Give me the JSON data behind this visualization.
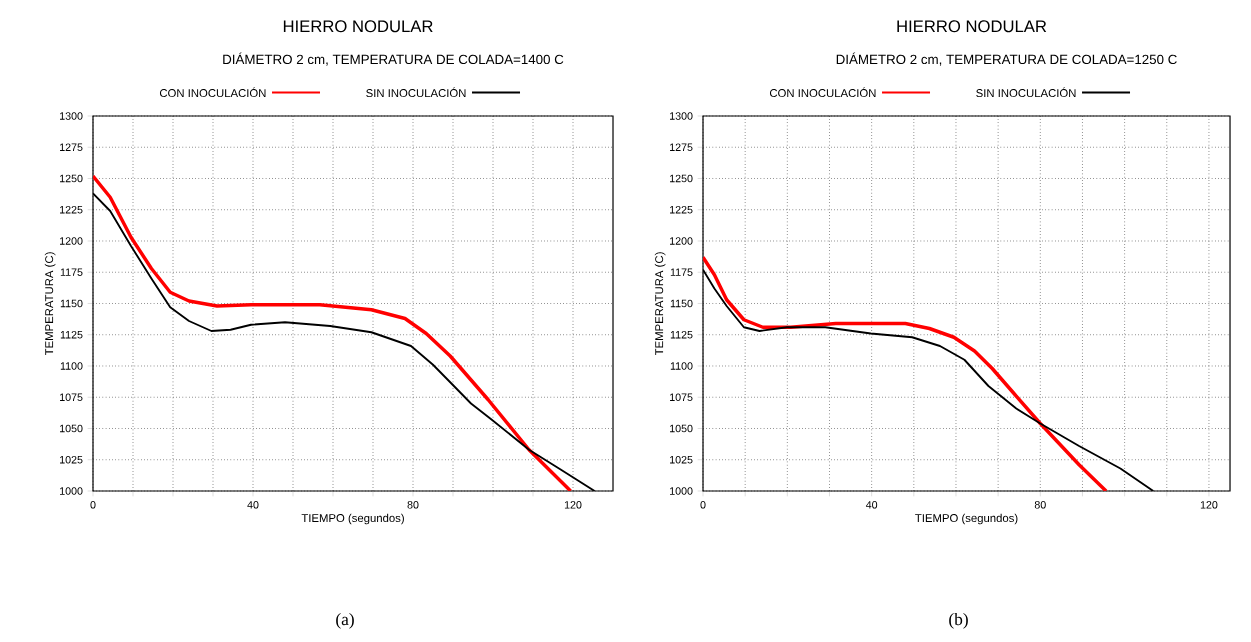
{
  "chart_data": [
    {
      "type": "line",
      "title": "HIERRO NODULAR",
      "subtitle": "DIÁMETRO 2 cm, TEMPERATURA DE COLADA=1400 C",
      "xlabel": "TIEMPO (segundos)",
      "ylabel": "TEMPERATURA (C)",
      "annotations": [
        "(a)"
      ],
      "legend": "top",
      "grid": true,
      "xlim": [
        0,
        130
      ],
      "ylim": [
        1000,
        1300
      ],
      "xticks": [
        0,
        {
          "value": 10,
          "label": null
        },
        {
          "value": 20,
          "label": null
        },
        {
          "value": 30,
          "label": null
        },
        40,
        {
          "value": 50,
          "label": null
        },
        {
          "value": 60,
          "label": null
        },
        {
          "value": 70,
          "label": null
        },
        80,
        {
          "value": 90,
          "label": null
        },
        {
          "value": 100,
          "label": null
        },
        {
          "value": 110,
          "label": null
        },
        120
      ],
      "yticks": [
        1000,
        1025,
        1050,
        1075,
        1100,
        1125,
        1150,
        1175,
        1200,
        1225,
        1250,
        1275,
        1300
      ],
      "series": [
        {
          "name": "CON INOCULACIÓN",
          "color": "#ff0000",
          "x": [
            0,
            4.3,
            9.5,
            14.6,
            19.3,
            24,
            31,
            39.5,
            56.7,
            69.6,
            78,
            83.3,
            89.3,
            98.8,
            109,
            119.4
          ],
          "values": [
            1252,
            1235,
            1203,
            1178,
            1159,
            1152,
            1148,
            1149,
            1149,
            1145,
            1138,
            1126,
            1108,
            1073,
            1033,
            1000
          ]
        },
        {
          "name": "SIN INOCULACIÓN",
          "color": "#000000",
          "x": [
            0,
            4.3,
            9.5,
            14.6,
            19.3,
            24,
            29.6,
            34.4,
            39.5,
            48,
            59.3,
            69.6,
            79.5,
            85,
            89.3,
            94.5,
            99.7,
            109,
            117,
            125.4
          ],
          "values": [
            1238,
            1224,
            1196,
            1170,
            1147,
            1136,
            1128,
            1129,
            1133,
            1135,
            1132,
            1127,
            1116,
            1101,
            1087,
            1070,
            1057,
            1033,
            1017,
            1000
          ]
        }
      ]
    },
    {
      "type": "line",
      "title": "HIERRO NODULAR",
      "subtitle": "DIÁMETRO 2 cm, TEMPERATURA DE COLADA=1250 C",
      "xlabel": "TIEMPO (segundos)",
      "ylabel": "TEMPERATURA (C)",
      "annotations": [
        "(b)"
      ],
      "legend": "top",
      "grid": true,
      "xlim": [
        0,
        125
      ],
      "ylim": [
        1000,
        1300
      ],
      "xticks": [
        0,
        {
          "value": 10,
          "label": null
        },
        {
          "value": 20,
          "label": null
        },
        {
          "value": 30,
          "label": null
        },
        40,
        {
          "value": 50,
          "label": null
        },
        {
          "value": 60,
          "label": null
        },
        {
          "value": 70,
          "label": null
        },
        80,
        {
          "value": 90,
          "label": null
        },
        {
          "value": 100,
          "label": null
        },
        {
          "value": 110,
          "label": null
        },
        120
      ],
      "yticks": [
        1000,
        1025,
        1050,
        1075,
        1100,
        1125,
        1150,
        1175,
        1200,
        1225,
        1250,
        1275,
        1300
      ],
      "series": [
        {
          "name": "CON INOCULACIÓN",
          "color": "#ff0000",
          "x": [
            0,
            2.7,
            5.6,
            9.7,
            14.2,
            20.8,
            31.5,
            48,
            53.7,
            59.5,
            64.4,
            68.6,
            73.5,
            80,
            89.2,
            95.6
          ],
          "values": [
            1187,
            1173,
            1153,
            1137,
            1131,
            1131,
            1134,
            1134,
            1130,
            1123,
            1112,
            1098,
            1079,
            1054,
            1021,
            1000
          ]
        },
        {
          "name": "SIN INOCULACIÓN",
          "color": "#000000",
          "x": [
            0,
            2.7,
            5.6,
            9.7,
            13.4,
            19.9,
            29,
            39.8,
            49.6,
            56.2,
            62,
            67.7,
            74.3,
            80,
            89.2,
            99,
            106.8
          ],
          "values": [
            1177,
            1162,
            1148,
            1131,
            1128,
            1131,
            1131,
            1126,
            1123,
            1116,
            1105,
            1084,
            1066,
            1054,
            1036,
            1018,
            1000
          ]
        }
      ]
    }
  ]
}
